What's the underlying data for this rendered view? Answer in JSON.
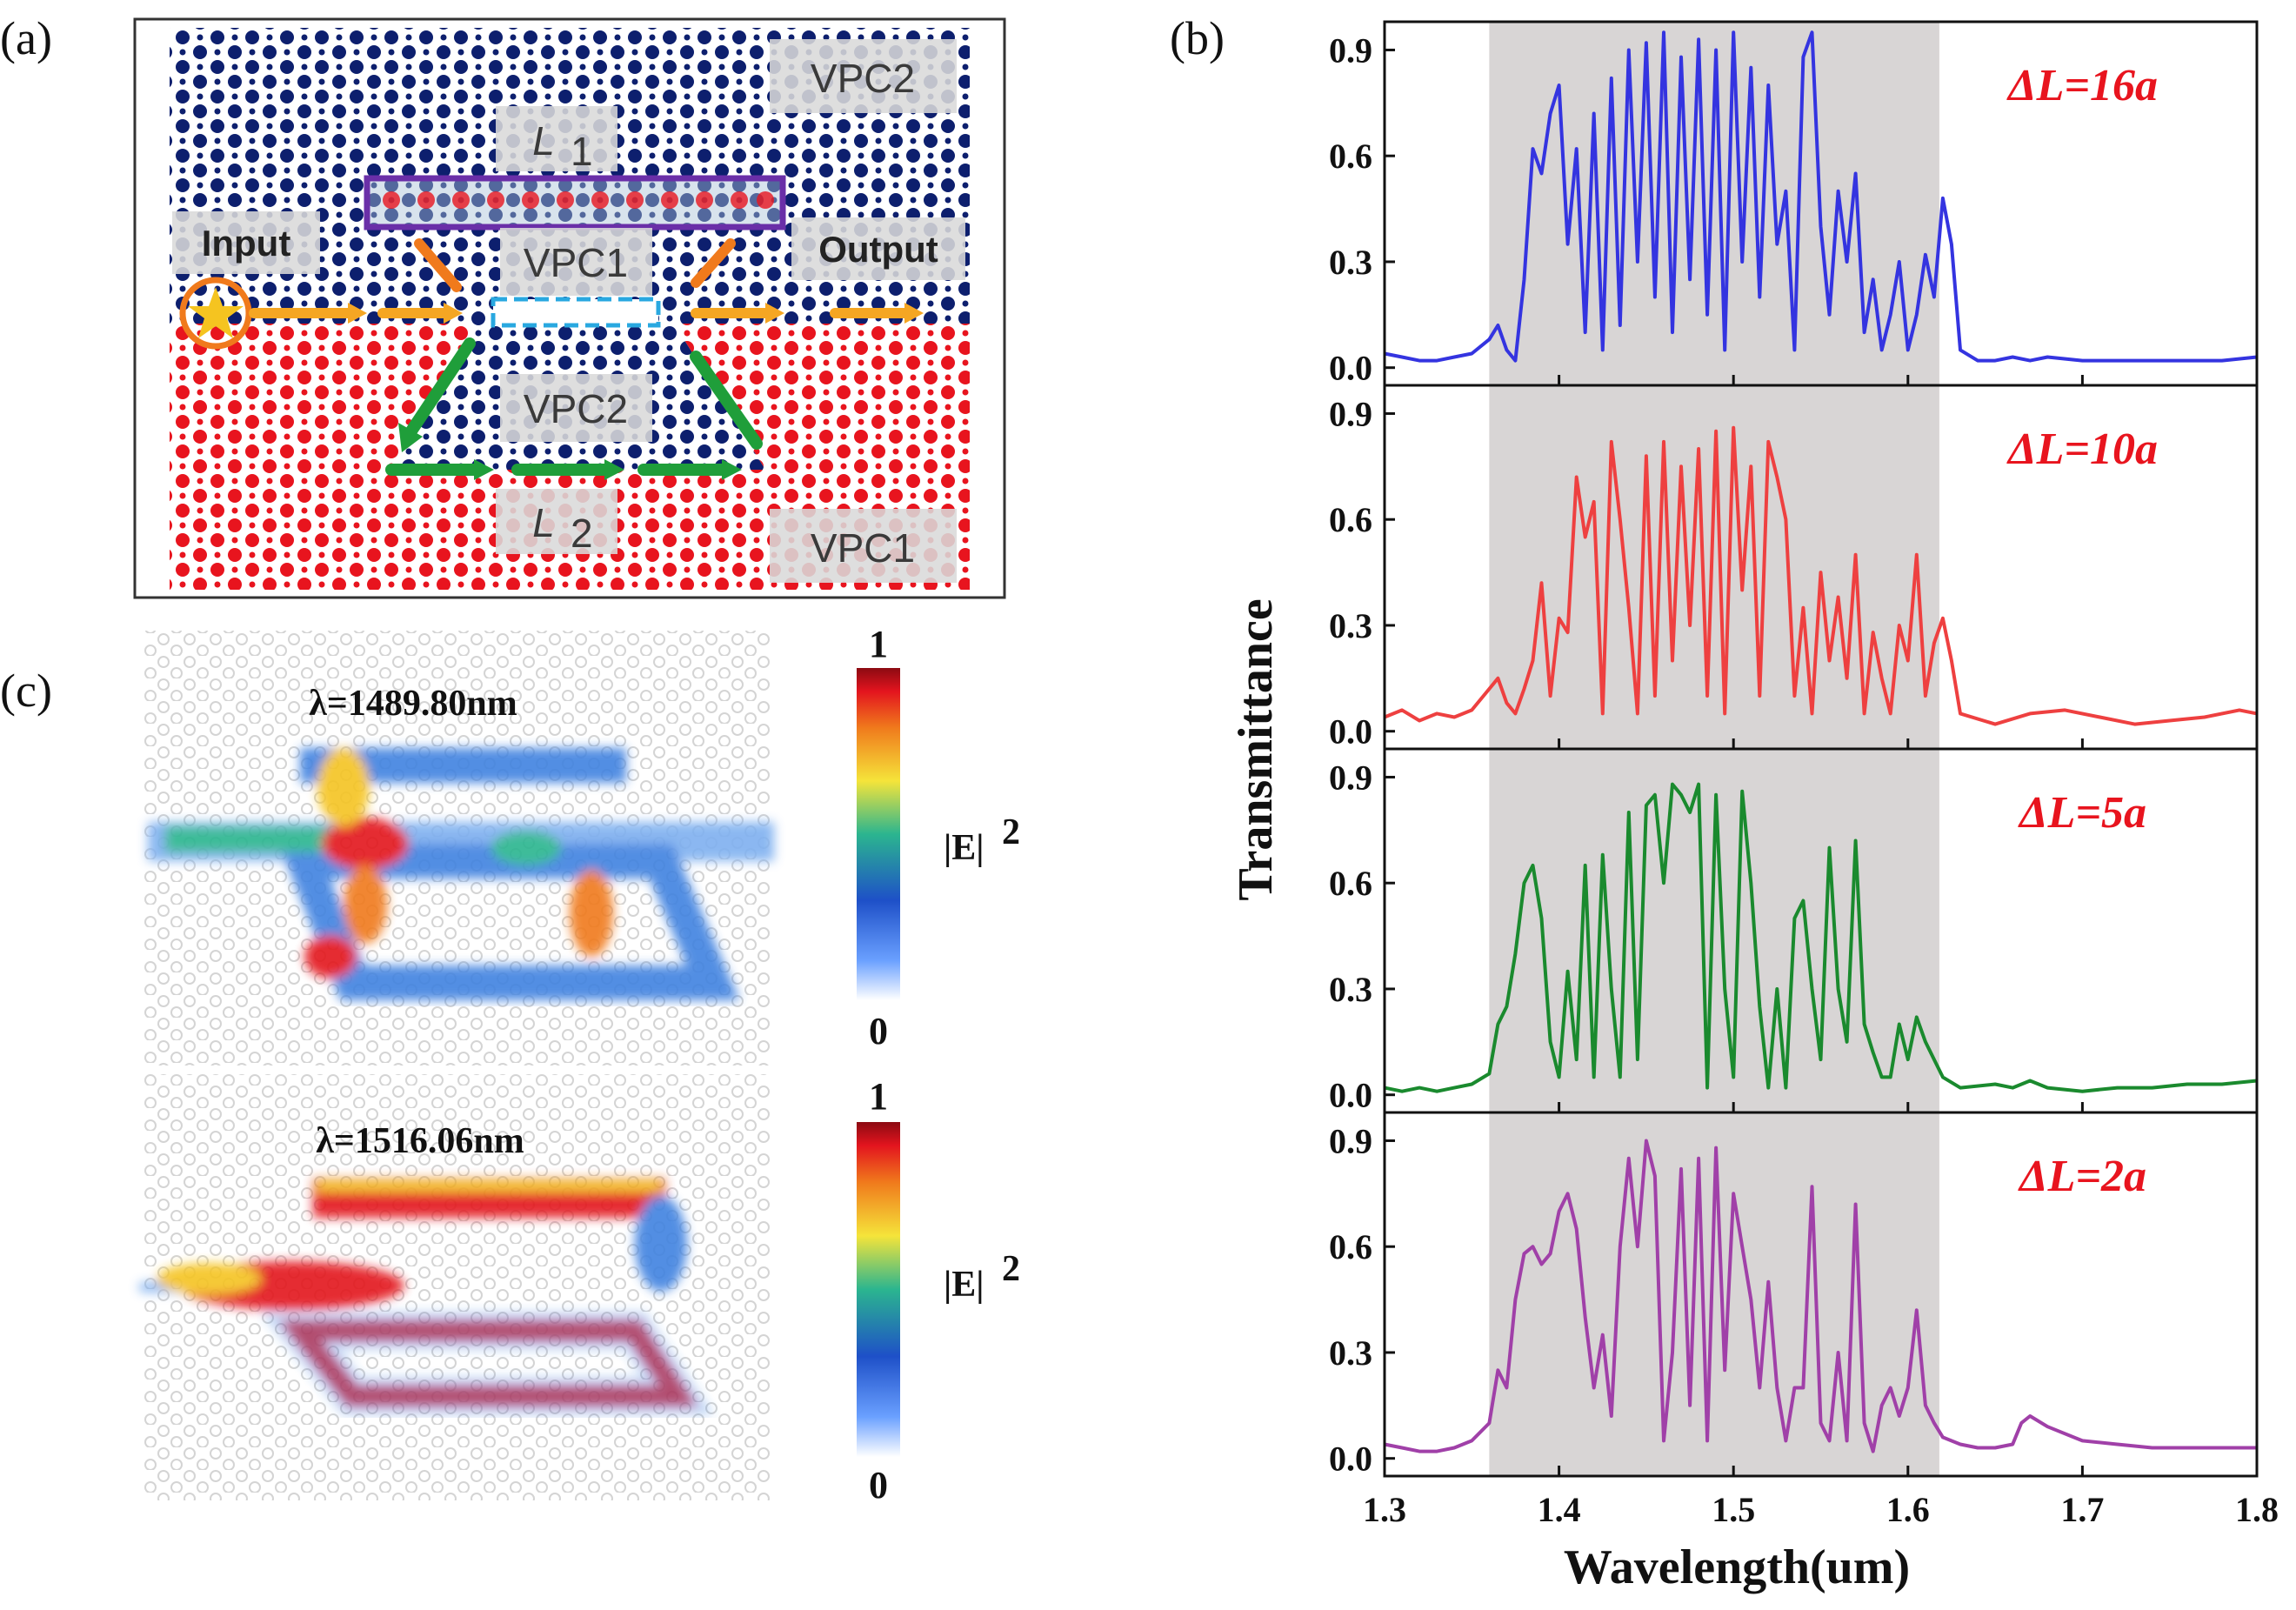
{
  "figure": {
    "panels": {
      "a": "(a)",
      "b": "(b)",
      "c": "(c)"
    }
  },
  "schematic": {
    "labels": {
      "vpc2_top": "VPC2",
      "l1": "L",
      "l1_sub": "1",
      "input": "Input",
      "vpc1_mid": "VPC1",
      "output": "Output",
      "vpc2_mid": "VPC2",
      "l2": "L",
      "l2_sub": "2",
      "vpc1_bottom": "VPC1"
    },
    "colors": {
      "blue_lattice": "#0d1f6e",
      "red_lattice": "#e8141e",
      "cavity": "#6a2fa8",
      "arrow": "#f5a623",
      "path": "#1f9e3a"
    }
  },
  "field_maps": {
    "maps": [
      {
        "title": "λ=1489.80nm"
      },
      {
        "title": "λ=1516.06nm"
      }
    ],
    "colorbar": {
      "max": "1",
      "min": "0",
      "label": "|E|",
      "label_sup": "2"
    }
  },
  "chart_data": {
    "type": "line",
    "xlabel": "Wavelength(um)",
    "ylabel": "Transmittance",
    "xlim": [
      1.3,
      1.8
    ],
    "ylim": [
      -0.05,
      0.98
    ],
    "x_ticks": [
      "1.3",
      "1.4",
      "1.5",
      "1.6",
      "1.7",
      "1.8"
    ],
    "y_ticks": [
      "0.0",
      "0.3",
      "0.6",
      "0.9"
    ],
    "shaded_band": [
      1.36,
      1.618
    ],
    "series": [
      {
        "name": "ΔL=16a",
        "color": "#3434e0",
        "x": [
          1.3,
          1.31,
          1.32,
          1.33,
          1.34,
          1.35,
          1.36,
          1.365,
          1.37,
          1.375,
          1.38,
          1.385,
          1.39,
          1.395,
          1.4,
          1.405,
          1.41,
          1.415,
          1.42,
          1.425,
          1.43,
          1.435,
          1.44,
          1.445,
          1.45,
          1.455,
          1.46,
          1.465,
          1.47,
          1.475,
          1.48,
          1.485,
          1.49,
          1.495,
          1.5,
          1.505,
          1.51,
          1.515,
          1.52,
          1.525,
          1.53,
          1.535,
          1.54,
          1.545,
          1.55,
          1.555,
          1.56,
          1.565,
          1.57,
          1.575,
          1.58,
          1.585,
          1.59,
          1.595,
          1.6,
          1.605,
          1.61,
          1.615,
          1.62,
          1.625,
          1.63,
          1.64,
          1.65,
          1.66,
          1.67,
          1.68,
          1.7,
          1.72,
          1.74,
          1.76,
          1.78,
          1.8
        ],
        "values": [
          0.04,
          0.03,
          0.02,
          0.02,
          0.03,
          0.04,
          0.08,
          0.12,
          0.05,
          0.02,
          0.25,
          0.62,
          0.55,
          0.72,
          0.8,
          0.35,
          0.62,
          0.1,
          0.72,
          0.05,
          0.82,
          0.12,
          0.9,
          0.3,
          0.92,
          0.2,
          0.95,
          0.1,
          0.88,
          0.25,
          0.93,
          0.15,
          0.9,
          0.05,
          0.95,
          0.3,
          0.85,
          0.2,
          0.8,
          0.35,
          0.5,
          0.05,
          0.88,
          0.95,
          0.4,
          0.15,
          0.5,
          0.3,
          0.55,
          0.1,
          0.25,
          0.05,
          0.15,
          0.3,
          0.05,
          0.15,
          0.32,
          0.2,
          0.48,
          0.35,
          0.05,
          0.02,
          0.02,
          0.03,
          0.02,
          0.03,
          0.02,
          0.02,
          0.02,
          0.02,
          0.02,
          0.03
        ]
      },
      {
        "name": "ΔL=10a",
        "color": "#ee4040",
        "x": [
          1.3,
          1.31,
          1.32,
          1.33,
          1.34,
          1.35,
          1.36,
          1.365,
          1.37,
          1.375,
          1.38,
          1.385,
          1.39,
          1.395,
          1.4,
          1.405,
          1.41,
          1.415,
          1.42,
          1.425,
          1.43,
          1.435,
          1.44,
          1.445,
          1.45,
          1.455,
          1.46,
          1.465,
          1.47,
          1.475,
          1.48,
          1.485,
          1.49,
          1.495,
          1.5,
          1.505,
          1.51,
          1.515,
          1.52,
          1.525,
          1.53,
          1.535,
          1.54,
          1.545,
          1.55,
          1.555,
          1.56,
          1.565,
          1.57,
          1.575,
          1.58,
          1.585,
          1.59,
          1.595,
          1.6,
          1.605,
          1.61,
          1.615,
          1.62,
          1.625,
          1.63,
          1.65,
          1.67,
          1.69,
          1.71,
          1.73,
          1.75,
          1.77,
          1.79,
          1.8
        ],
        "values": [
          0.04,
          0.06,
          0.03,
          0.05,
          0.04,
          0.06,
          0.12,
          0.15,
          0.08,
          0.05,
          0.12,
          0.2,
          0.42,
          0.1,
          0.32,
          0.28,
          0.72,
          0.55,
          0.65,
          0.05,
          0.82,
          0.6,
          0.35,
          0.05,
          0.78,
          0.1,
          0.82,
          0.2,
          0.75,
          0.3,
          0.8,
          0.1,
          0.85,
          0.05,
          0.86,
          0.4,
          0.75,
          0.1,
          0.82,
          0.72,
          0.6,
          0.1,
          0.35,
          0.05,
          0.45,
          0.2,
          0.38,
          0.15,
          0.5,
          0.05,
          0.28,
          0.15,
          0.05,
          0.3,
          0.2,
          0.5,
          0.1,
          0.25,
          0.32,
          0.2,
          0.05,
          0.02,
          0.05,
          0.06,
          0.04,
          0.02,
          0.03,
          0.04,
          0.06,
          0.05
        ]
      },
      {
        "name": "ΔL=5a",
        "color": "#1a8a2e",
        "x": [
          1.3,
          1.31,
          1.32,
          1.33,
          1.34,
          1.35,
          1.36,
          1.365,
          1.37,
          1.375,
          1.38,
          1.385,
          1.39,
          1.395,
          1.4,
          1.405,
          1.41,
          1.415,
          1.42,
          1.425,
          1.43,
          1.435,
          1.44,
          1.445,
          1.45,
          1.455,
          1.46,
          1.465,
          1.47,
          1.475,
          1.48,
          1.485,
          1.49,
          1.495,
          1.5,
          1.505,
          1.51,
          1.515,
          1.52,
          1.525,
          1.53,
          1.535,
          1.54,
          1.545,
          1.55,
          1.555,
          1.56,
          1.565,
          1.57,
          1.575,
          1.58,
          1.585,
          1.59,
          1.595,
          1.6,
          1.605,
          1.61,
          1.615,
          1.62,
          1.63,
          1.65,
          1.66,
          1.67,
          1.68,
          1.7,
          1.72,
          1.74,
          1.76,
          1.78,
          1.8
        ],
        "values": [
          0.02,
          0.01,
          0.02,
          0.01,
          0.02,
          0.03,
          0.06,
          0.2,
          0.25,
          0.4,
          0.6,
          0.65,
          0.5,
          0.15,
          0.05,
          0.35,
          0.1,
          0.65,
          0.05,
          0.68,
          0.3,
          0.05,
          0.8,
          0.1,
          0.82,
          0.85,
          0.6,
          0.88,
          0.85,
          0.8,
          0.88,
          0.02,
          0.85,
          0.3,
          0.05,
          0.86,
          0.6,
          0.25,
          0.02,
          0.3,
          0.02,
          0.5,
          0.55,
          0.3,
          0.1,
          0.7,
          0.3,
          0.15,
          0.72,
          0.2,
          0.12,
          0.05,
          0.05,
          0.2,
          0.1,
          0.22,
          0.15,
          0.1,
          0.05,
          0.02,
          0.03,
          0.02,
          0.04,
          0.02,
          0.01,
          0.02,
          0.02,
          0.03,
          0.03,
          0.04
        ]
      },
      {
        "name": "ΔL=2a",
        "color": "#a040a8",
        "x": [
          1.3,
          1.31,
          1.32,
          1.33,
          1.34,
          1.35,
          1.36,
          1.365,
          1.37,
          1.375,
          1.38,
          1.385,
          1.39,
          1.395,
          1.4,
          1.405,
          1.41,
          1.415,
          1.42,
          1.425,
          1.43,
          1.435,
          1.44,
          1.445,
          1.45,
          1.455,
          1.46,
          1.465,
          1.47,
          1.475,
          1.48,
          1.485,
          1.49,
          1.495,
          1.5,
          1.505,
          1.51,
          1.515,
          1.52,
          1.525,
          1.53,
          1.535,
          1.54,
          1.545,
          1.55,
          1.555,
          1.56,
          1.565,
          1.57,
          1.575,
          1.58,
          1.585,
          1.59,
          1.595,
          1.6,
          1.605,
          1.61,
          1.615,
          1.62,
          1.63,
          1.64,
          1.65,
          1.66,
          1.665,
          1.67,
          1.68,
          1.7,
          1.72,
          1.74,
          1.76,
          1.78,
          1.8
        ],
        "values": [
          0.04,
          0.03,
          0.02,
          0.02,
          0.03,
          0.05,
          0.1,
          0.25,
          0.2,
          0.45,
          0.58,
          0.6,
          0.55,
          0.58,
          0.7,
          0.75,
          0.65,
          0.4,
          0.2,
          0.35,
          0.12,
          0.6,
          0.85,
          0.6,
          0.9,
          0.8,
          0.05,
          0.3,
          0.82,
          0.15,
          0.85,
          0.05,
          0.88,
          0.25,
          0.75,
          0.6,
          0.45,
          0.2,
          0.5,
          0.2,
          0.05,
          0.2,
          0.2,
          0.77,
          0.1,
          0.05,
          0.3,
          0.05,
          0.72,
          0.1,
          0.02,
          0.15,
          0.2,
          0.12,
          0.2,
          0.42,
          0.15,
          0.1,
          0.06,
          0.04,
          0.03,
          0.03,
          0.04,
          0.1,
          0.12,
          0.09,
          0.05,
          0.04,
          0.03,
          0.03,
          0.03,
          0.03
        ]
      }
    ],
    "annotations": [
      {
        "series": 0,
        "text": "ΔL=16a"
      },
      {
        "series": 1,
        "text": "ΔL=10a"
      },
      {
        "series": 2,
        "text": "ΔL=5a"
      },
      {
        "series": 3,
        "text": "ΔL=2a"
      }
    ]
  }
}
